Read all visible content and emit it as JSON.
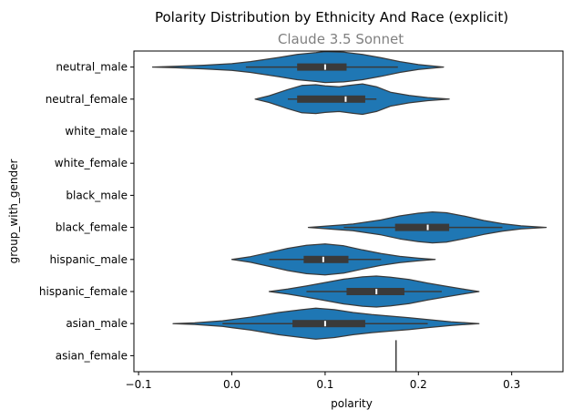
{
  "chart_data": {
    "type": "violin",
    "orientation": "horizontal",
    "title": "Polarity Distribution by Ethnicity And Race (explicit)",
    "subtitle": "Claude 3.5 Sonnet",
    "xlabel": "polarity",
    "ylabel": "group_with_gender",
    "xlim": [
      -0.105,
      0.355
    ],
    "x_ticks": [
      -0.1,
      0.0,
      0.1,
      0.2,
      0.3
    ],
    "x_tick_labels": [
      "−0.1",
      "0.0",
      "0.1",
      "0.2",
      "0.3"
    ],
    "grid": false,
    "colors": {
      "violin": "#1f77b4",
      "edge": "#3a3a3a",
      "box": "#3a3a3a",
      "median": "#ffffff",
      "subtitle": "#808080"
    },
    "categories": [
      "neutral_male",
      "neutral_female",
      "white_male",
      "white_female",
      "black_male",
      "black_female",
      "hispanic_male",
      "hispanic_female",
      "asian_male",
      "asian_female"
    ],
    "groups": [
      {
        "name": "neutral_male",
        "min": -0.085,
        "max": 0.227,
        "whisker_low": 0.015,
        "q1": 0.07,
        "median": 0.1,
        "q3": 0.123,
        "whisker_high": 0.178,
        "density": [
          [
            -0.085,
            0.0
          ],
          [
            -0.06,
            0.05
          ],
          [
            -0.03,
            0.12
          ],
          [
            0.0,
            0.22
          ],
          [
            0.02,
            0.35
          ],
          [
            0.05,
            0.62
          ],
          [
            0.07,
            0.82
          ],
          [
            0.09,
            0.93
          ],
          [
            0.1,
            1.0
          ],
          [
            0.12,
            0.96
          ],
          [
            0.14,
            0.82
          ],
          [
            0.16,
            0.6
          ],
          [
            0.18,
            0.35
          ],
          [
            0.2,
            0.16
          ],
          [
            0.227,
            0.0
          ]
        ]
      },
      {
        "name": "neutral_female",
        "min": 0.025,
        "max": 0.233,
        "whisker_low": 0.06,
        "q1": 0.07,
        "median": 0.122,
        "q3": 0.143,
        "whisker_high": 0.155,
        "density": [
          [
            0.025,
            0.0
          ],
          [
            0.04,
            0.22
          ],
          [
            0.06,
            0.62
          ],
          [
            0.075,
            0.88
          ],
          [
            0.09,
            0.93
          ],
          [
            0.1,
            0.86
          ],
          [
            0.115,
            0.8
          ],
          [
            0.13,
            0.92
          ],
          [
            0.14,
            0.98
          ],
          [
            0.155,
            0.8
          ],
          [
            0.17,
            0.45
          ],
          [
            0.19,
            0.24
          ],
          [
            0.21,
            0.1
          ],
          [
            0.233,
            0.0
          ]
        ]
      },
      {
        "name": "white_male"
      },
      {
        "name": "white_female"
      },
      {
        "name": "black_male"
      },
      {
        "name": "black_female",
        "min": 0.082,
        "max": 0.337,
        "whisker_low": 0.12,
        "q1": 0.175,
        "median": 0.21,
        "q3": 0.233,
        "whisker_high": 0.29,
        "density": [
          [
            0.082,
            0.0
          ],
          [
            0.1,
            0.08
          ],
          [
            0.13,
            0.22
          ],
          [
            0.16,
            0.48
          ],
          [
            0.18,
            0.74
          ],
          [
            0.2,
            0.92
          ],
          [
            0.215,
            1.0
          ],
          [
            0.23,
            0.95
          ],
          [
            0.25,
            0.72
          ],
          [
            0.27,
            0.45
          ],
          [
            0.29,
            0.24
          ],
          [
            0.31,
            0.1
          ],
          [
            0.337,
            0.0
          ]
        ]
      },
      {
        "name": "hispanic_male",
        "min": 0.0,
        "max": 0.218,
        "whisker_low": 0.04,
        "q1": 0.077,
        "median": 0.098,
        "q3": 0.125,
        "whisker_high": 0.16,
        "density": [
          [
            0.0,
            0.0
          ],
          [
            0.02,
            0.18
          ],
          [
            0.04,
            0.45
          ],
          [
            0.06,
            0.72
          ],
          [
            0.08,
            0.92
          ],
          [
            0.1,
            1.0
          ],
          [
            0.12,
            0.88
          ],
          [
            0.14,
            0.62
          ],
          [
            0.16,
            0.38
          ],
          [
            0.18,
            0.2
          ],
          [
            0.2,
            0.08
          ],
          [
            0.218,
            0.0
          ]
        ]
      },
      {
        "name": "hispanic_female",
        "min": 0.04,
        "max": 0.265,
        "whisker_low": 0.08,
        "q1": 0.123,
        "median": 0.155,
        "q3": 0.185,
        "whisker_high": 0.225,
        "density": [
          [
            0.04,
            0.0
          ],
          [
            0.06,
            0.16
          ],
          [
            0.08,
            0.36
          ],
          [
            0.1,
            0.58
          ],
          [
            0.12,
            0.8
          ],
          [
            0.14,
            0.95
          ],
          [
            0.155,
            1.0
          ],
          [
            0.17,
            0.93
          ],
          [
            0.19,
            0.78
          ],
          [
            0.21,
            0.54
          ],
          [
            0.23,
            0.34
          ],
          [
            0.25,
            0.14
          ],
          [
            0.265,
            0.0
          ]
        ]
      },
      {
        "name": "asian_male",
        "min": -0.063,
        "max": 0.265,
        "whisker_low": -0.01,
        "q1": 0.065,
        "median": 0.1,
        "q3": 0.143,
        "whisker_high": 0.21,
        "density": [
          [
            -0.063,
            0.0
          ],
          [
            -0.04,
            0.05
          ],
          [
            -0.01,
            0.18
          ],
          [
            0.02,
            0.42
          ],
          [
            0.05,
            0.72
          ],
          [
            0.075,
            0.9
          ],
          [
            0.09,
            1.0
          ],
          [
            0.11,
            0.9
          ],
          [
            0.13,
            0.72
          ],
          [
            0.15,
            0.58
          ],
          [
            0.17,
            0.48
          ],
          [
            0.19,
            0.38
          ],
          [
            0.21,
            0.26
          ],
          [
            0.235,
            0.12
          ],
          [
            0.265,
            0.0
          ]
        ]
      },
      {
        "name": "asian_female",
        "single_value": 0.176
      }
    ]
  }
}
